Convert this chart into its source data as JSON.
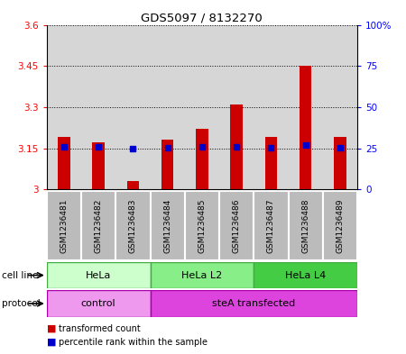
{
  "title": "GDS5097 / 8132270",
  "samples": [
    "GSM1236481",
    "GSM1236482",
    "GSM1236483",
    "GSM1236484",
    "GSM1236485",
    "GSM1236486",
    "GSM1236487",
    "GSM1236488",
    "GSM1236489"
  ],
  "red_bar_values": [
    3.19,
    3.17,
    3.03,
    3.18,
    3.22,
    3.31,
    3.19,
    3.45,
    3.19
  ],
  "blue_dot_values": [
    3.155,
    3.155,
    3.148,
    3.152,
    3.155,
    3.155,
    3.152,
    3.162,
    3.152
  ],
  "y_min": 3.0,
  "y_max": 3.6,
  "y_ticks": [
    3.0,
    3.15,
    3.3,
    3.45,
    3.6
  ],
  "y_tick_labels": [
    "3",
    "3.15",
    "3.3",
    "3.45",
    "3.6"
  ],
  "y2_ticks": [
    0,
    25,
    50,
    75,
    100
  ],
  "y2_tick_labels": [
    "0",
    "25",
    "50",
    "75",
    "100%"
  ],
  "cell_line_groups": [
    {
      "label": "HeLa",
      "start": 0,
      "end": 3,
      "color": "#ccffcc"
    },
    {
      "label": "HeLa L2",
      "start": 3,
      "end": 6,
      "color": "#88ee88"
    },
    {
      "label": "HeLa L4",
      "start": 6,
      "end": 9,
      "color": "#44cc44"
    }
  ],
  "protocol_groups": [
    {
      "label": "control",
      "start": 0,
      "end": 3,
      "color": "#ee99ee"
    },
    {
      "label": "steA transfected",
      "start": 3,
      "end": 9,
      "color": "#dd44dd"
    }
  ],
  "cell_line_label": "cell line",
  "protocol_label": "protocol",
  "legend_items": [
    {
      "color": "#cc0000",
      "label": "transformed count"
    },
    {
      "color": "#0000cc",
      "label": "percentile rank within the sample"
    }
  ],
  "bar_color": "#cc0000",
  "dot_color": "#0000cc",
  "bar_width": 0.35,
  "background_samples": "#bbbbbb"
}
